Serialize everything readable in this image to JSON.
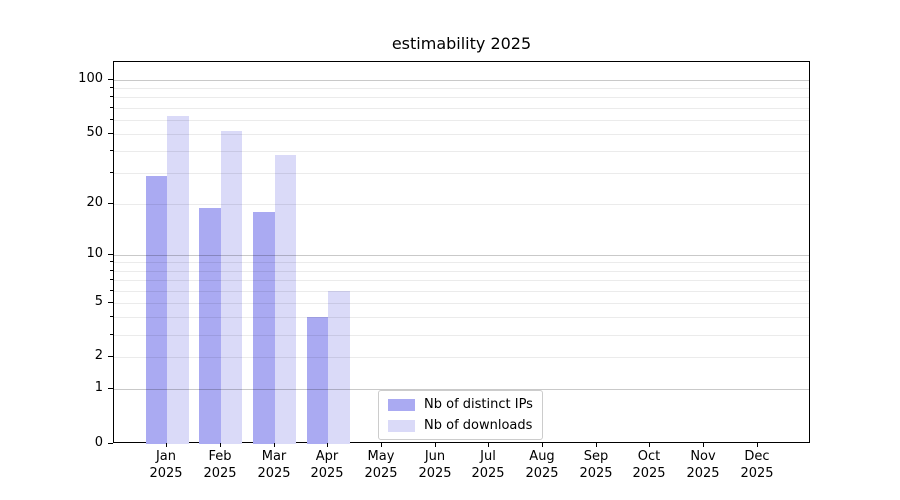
{
  "chart_data": {
    "type": "bar",
    "title": "estimability 2025",
    "categories": [
      "Jan",
      "Feb",
      "Mar",
      "Apr",
      "May",
      "Jun",
      "Jul",
      "Aug",
      "Sep",
      "Oct",
      "Nov",
      "Dec"
    ],
    "category_year": "2025",
    "series": [
      {
        "name": "Nb of distinct IPs",
        "color": "#aaaaf2",
        "values": [
          29,
          19,
          18,
          4,
          0,
          0,
          0,
          0,
          0,
          0,
          0,
          0
        ]
      },
      {
        "name": "Nb of downloads",
        "color": "#dadaf8",
        "values": [
          63,
          52,
          38,
          6,
          0,
          0,
          0,
          0,
          0,
          0,
          0,
          0
        ]
      }
    ],
    "yscale": "log1p",
    "ylim": [
      0,
      126
    ],
    "ytick_labels": [
      0,
      1,
      2,
      5,
      10,
      20,
      50,
      100
    ],
    "y_major_gridlines": [
      1,
      10,
      100
    ],
    "y_minor_gridlines": [
      2,
      3,
      4,
      5,
      6,
      7,
      8,
      9,
      20,
      30,
      40,
      50,
      60,
      70,
      80,
      90
    ],
    "grid": true,
    "legend_position": "lower center",
    "xlabel": "",
    "ylabel": ""
  }
}
